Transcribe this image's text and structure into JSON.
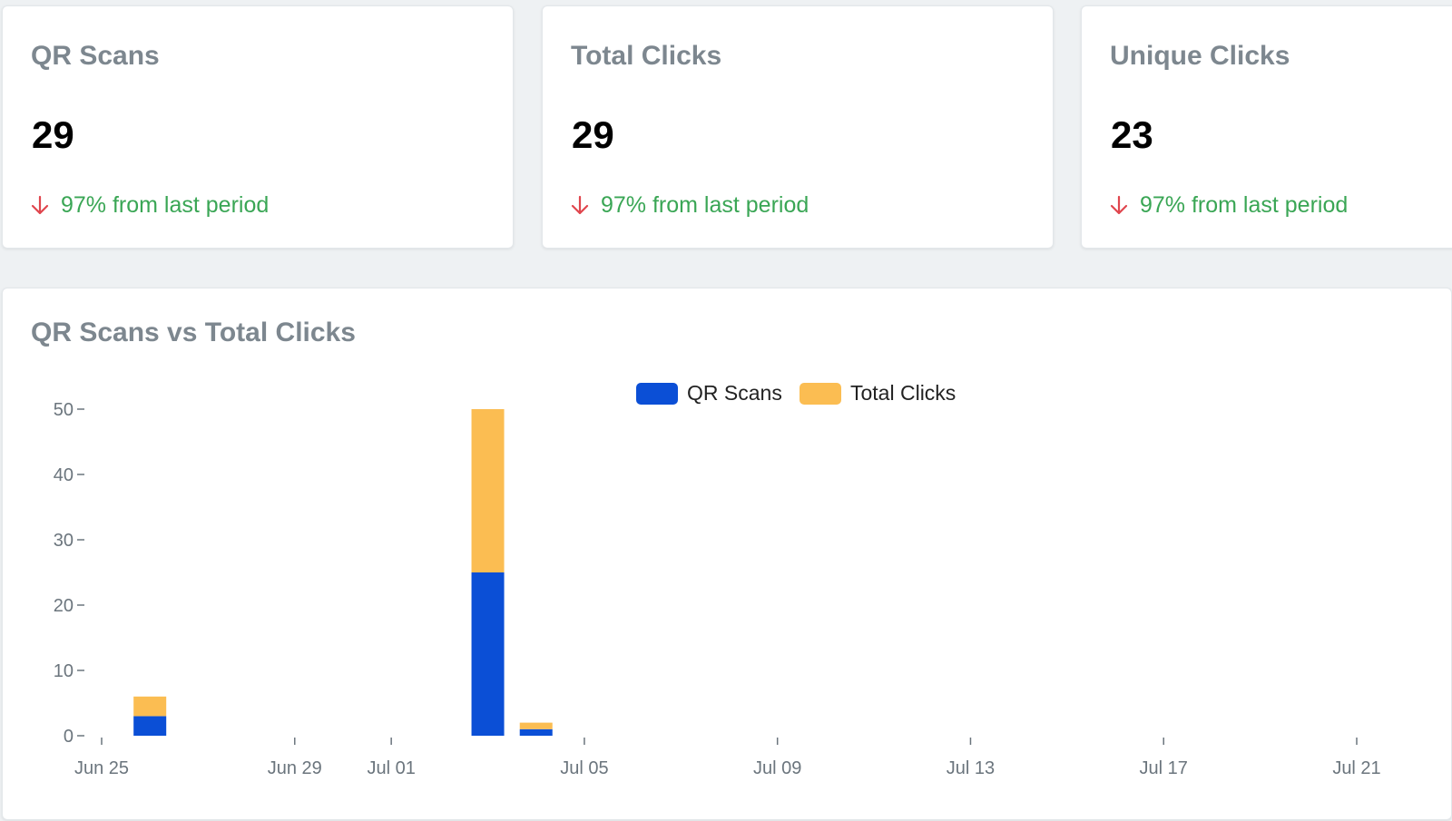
{
  "stats": [
    {
      "title": "QR Scans",
      "value": "29",
      "change": "97% from last period",
      "direction": "down-arrow-icon"
    },
    {
      "title": "Total Clicks",
      "value": "29",
      "change": "97% from last period",
      "direction": "down-arrow-icon"
    },
    {
      "title": "Unique Clicks",
      "value": "23",
      "change": "97% from last period",
      "direction": "down-arrow-icon"
    }
  ],
  "colors": {
    "qr_scans": "#0b4fd6",
    "total_clicks": "#fbbd52",
    "down_arrow": "#e0464e",
    "change_text": "#3aa655"
  },
  "chart": {
    "title": "QR Scans vs Total Clicks"
  },
  "chart_data": {
    "type": "bar",
    "stacked": true,
    "title": "QR Scans vs Total Clicks",
    "xlabel": "",
    "ylabel": "",
    "ylim": [
      0,
      50
    ],
    "yticks": [
      0,
      10,
      20,
      30,
      40,
      50
    ],
    "x_axis_type": "date",
    "x_tick_labels": [
      "Jun 25",
      "Jun 29",
      "Jul 01",
      "Jul 05",
      "Jul 09",
      "Jul 13",
      "Jul 17",
      "Jul 21"
    ],
    "x_ticks": [
      "2024-06-25",
      "2024-06-29",
      "2024-07-01",
      "2024-07-05",
      "2024-07-09",
      "2024-07-13",
      "2024-07-17",
      "2024-07-21"
    ],
    "x_range": [
      "2024-06-25",
      "2024-07-21"
    ],
    "legend": "top-center",
    "grid": false,
    "dates": [
      "2024-06-26",
      "2024-07-03",
      "2024-07-04"
    ],
    "series": [
      {
        "name": "QR Scans",
        "values": [
          3,
          25,
          1
        ]
      },
      {
        "name": "Total Clicks",
        "values": [
          3,
          25,
          1
        ]
      }
    ]
  }
}
